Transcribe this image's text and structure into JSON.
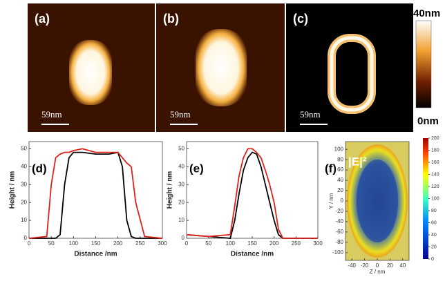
{
  "images": [
    {
      "label": "(a)",
      "scale_bar": "59nm"
    },
    {
      "label": "(b)",
      "scale_bar": "59nm"
    },
    {
      "label": "(c)",
      "scale_bar": "59nm"
    }
  ],
  "colorbar": {
    "max_label": "40nm",
    "min_label": "0nm"
  },
  "chart_data": [
    {
      "type": "line",
      "panel_label": "(d)",
      "xlabel": "Distance /nm",
      "ylabel": "Height / nm",
      "x": [
        0,
        40,
        50,
        60,
        70,
        80,
        90,
        100,
        120,
        150,
        180,
        200,
        210,
        220,
        230,
        240,
        260,
        300
      ],
      "series": [
        {
          "color": "#000000",
          "values": [
            0,
            0,
            0,
            0,
            2,
            30,
            45,
            48,
            48,
            47,
            47,
            48,
            40,
            10,
            1,
            0,
            0,
            0
          ]
        },
        {
          "color": "#e0201a",
          "values": [
            0,
            1,
            30,
            45,
            47,
            48,
            48,
            49,
            50,
            48,
            48,
            48,
            45,
            42,
            40,
            20,
            1,
            0
          ]
        }
      ],
      "xlim": [
        0,
        300
      ],
      "ylim": [
        0,
        54
      ],
      "xticks": [
        0,
        50,
        100,
        150,
        200,
        250,
        300
      ],
      "yticks": [
        0,
        10,
        20,
        30,
        40,
        50
      ]
    },
    {
      "type": "line",
      "panel_label": "(e)",
      "xlabel": "Distance /nm",
      "ylabel": "Height / nm",
      "x": [
        0,
        50,
        100,
        110,
        120,
        130,
        140,
        150,
        160,
        170,
        180,
        190,
        200,
        210,
        220,
        260,
        300
      ],
      "series": [
        {
          "color": "#000000",
          "values": [
            2,
            1,
            0,
            10,
            25,
            38,
            45,
            48,
            47,
            40,
            30,
            20,
            10,
            2,
            0,
            0,
            0
          ]
        },
        {
          "color": "#e0201a",
          "values": [
            2,
            1,
            2,
            18,
            35,
            45,
            50,
            50,
            48,
            45,
            38,
            30,
            20,
            5,
            0,
            0,
            0
          ]
        }
      ],
      "xlim": [
        0,
        300
      ],
      "ylim": [
        0,
        54
      ],
      "xticks": [
        0,
        50,
        100,
        150,
        200,
        250,
        300
      ],
      "yticks": [
        0,
        10,
        20,
        30,
        40,
        50
      ]
    },
    {
      "type": "heatmap",
      "panel_label": "(f)",
      "title": "|E|²",
      "xlabel": "Z / nm",
      "ylabel": "Y / nm",
      "xlim": [
        -50,
        50
      ],
      "ylim": [
        -115,
        115
      ],
      "xticks": [
        -40,
        -20,
        0,
        20,
        40
      ],
      "yticks": [
        -100,
        -80,
        -60,
        -40,
        -20,
        0,
        20,
        40,
        60,
        80,
        100
      ],
      "clim": [
        0,
        200
      ],
      "cticks": [
        0,
        20,
        40,
        60,
        80,
        100,
        120,
        140,
        160,
        180,
        200
      ]
    }
  ]
}
